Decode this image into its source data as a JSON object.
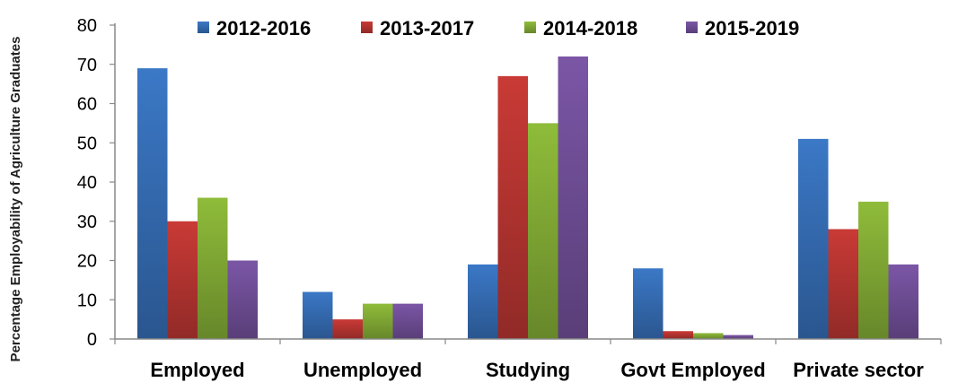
{
  "chart_data": {
    "type": "bar",
    "title": "",
    "xlabel": "",
    "ylabel": "Percentage Employability of Agriculture Graduates",
    "ylim": [
      0,
      80
    ],
    "yticks": [
      0,
      10,
      20,
      30,
      40,
      50,
      60,
      70,
      80
    ],
    "grid": false,
    "legend_position": "top",
    "categories": [
      "Employed",
      "Unemployed",
      "Studying",
      "Govt Employed",
      "Private sector"
    ],
    "series": [
      {
        "name": "2012-2016",
        "color": "#3b78c6",
        "values": [
          69,
          12,
          19,
          18,
          51
        ]
      },
      {
        "name": "2013-2017",
        "color": "#c93a36",
        "values": [
          30,
          5,
          67,
          2,
          28
        ]
      },
      {
        "name": "2014-2018",
        "color": "#8fbc3a",
        "values": [
          36,
          9,
          55,
          1.5,
          35
        ]
      },
      {
        "name": "2015-2019",
        "color": "#7b56a6",
        "values": [
          20,
          9,
          72,
          1,
          19
        ]
      }
    ]
  }
}
